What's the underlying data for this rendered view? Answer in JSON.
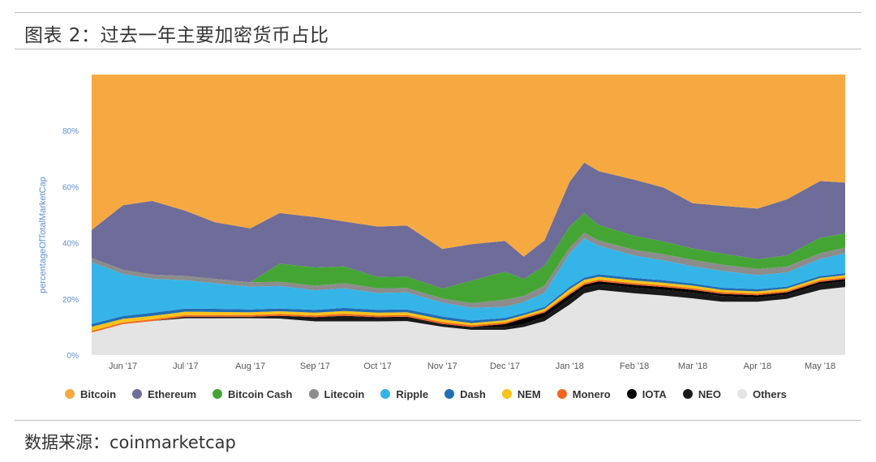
{
  "header": {
    "title": "图表 2：过去一年主要加密货币占比"
  },
  "footer": {
    "source": "数据来源：coinmarketcap"
  },
  "chart_data": {
    "type": "area",
    "stacking": "percent",
    "title": "",
    "xlabel": "",
    "ylabel": "percentageOfTotalMarketCap",
    "ylim": [
      0,
      100
    ],
    "y_ticks": [
      "0%",
      "20%",
      "40%",
      "60%",
      "80%"
    ],
    "y_tick_values": [
      0,
      20,
      40,
      60,
      80
    ],
    "x_ticks": [
      "Jun '17",
      "Jul '17",
      "Aug '17",
      "Sep '17",
      "Oct '17",
      "Nov '17",
      "Dec '17",
      "Jan '18",
      "Feb '18",
      "Mar '18",
      "Apr '18",
      "May '18"
    ],
    "x_tick_values": [
      "2017-06-01",
      "2017-07-01",
      "2017-08-01",
      "2017-09-01",
      "2017-10-01",
      "2017-11-01",
      "2017-12-01",
      "2018-01-01",
      "2018-02-01",
      "2018-03-01",
      "2018-04-01",
      "2018-05-01"
    ],
    "x_range": [
      "2017-05-17",
      "2018-05-13"
    ],
    "legend_position": "bottom",
    "grid": false,
    "x": [
      "2017-05-17",
      "2017-06-01",
      "2017-06-15",
      "2017-07-01",
      "2017-07-15",
      "2017-08-01",
      "2017-08-15",
      "2017-09-01",
      "2017-09-15",
      "2017-10-01",
      "2017-10-15",
      "2017-11-01",
      "2017-11-15",
      "2017-12-01",
      "2017-12-10",
      "2017-12-20",
      "2018-01-01",
      "2018-01-08",
      "2018-01-15",
      "2018-02-01",
      "2018-02-15",
      "2018-03-01",
      "2018-03-15",
      "2018-04-01",
      "2018-04-15",
      "2018-05-01",
      "2018-05-13"
    ],
    "series": [
      {
        "name": "Others",
        "color": "#e4e4e4",
        "values": [
          8,
          11,
          12,
          13,
          13,
          13,
          13,
          12,
          12,
          12,
          12,
          10,
          9,
          9,
          10,
          12,
          18,
          22,
          23,
          22,
          21,
          20,
          19,
          19,
          20,
          23,
          24
        ]
      },
      {
        "name": "NEO",
        "color": "#1a1a1a",
        "values": [
          0,
          0,
          0,
          0.5,
          0.5,
          0.5,
          1,
          1.5,
          2,
          1.5,
          1.5,
          1,
          1,
          1,
          1,
          1.5,
          2,
          2,
          2,
          2,
          2,
          2,
          2,
          1.5,
          1.5,
          2,
          2
        ]
      },
      {
        "name": "IOTA",
        "color": "#000000",
        "values": [
          0,
          0,
          0,
          0,
          0,
          0,
          0,
          0,
          0,
          0,
          0,
          0,
          0,
          1,
          2,
          1.5,
          1.5,
          1,
          1,
          1,
          1,
          1,
          0.8,
          0.8,
          0.8,
          0.8,
          0.8
        ]
      },
      {
        "name": "Monero",
        "color": "#f26722",
        "values": [
          0.6,
          0.6,
          0.6,
          0.6,
          0.6,
          0.6,
          0.6,
          0.6,
          0.7,
          0.6,
          0.6,
          0.7,
          0.6,
          0.6,
          0.5,
          0.5,
          0.7,
          0.6,
          0.6,
          0.6,
          0.6,
          0.6,
          0.6,
          0.6,
          0.6,
          0.6,
          0.6
        ]
      },
      {
        "name": "NEM",
        "color": "#f7c31a",
        "values": [
          1.5,
          1.3,
          1.2,
          1.2,
          1.1,
          1,
          1,
          1,
          1,
          1,
          1,
          0.9,
          0.8,
          0.8,
          0.7,
          0.8,
          1.3,
          1.2,
          1,
          1,
          0.9,
          0.9,
          0.8,
          0.8,
          0.8,
          0.8,
          0.8
        ]
      },
      {
        "name": "Dash",
        "color": "#1f6eb5",
        "values": [
          1,
          1,
          1.1,
          1.1,
          1.1,
          1,
          1,
          1,
          1.1,
          1,
          1,
          1,
          0.9,
          0.8,
          0.7,
          0.7,
          0.8,
          0.8,
          0.9,
          0.9,
          0.9,
          0.8,
          0.8,
          0.8,
          0.7,
          0.7,
          0.7
        ]
      },
      {
        "name": "Ripple",
        "color": "#35b4e8",
        "values": [
          22,
          15,
          12,
          10,
          9,
          8,
          8,
          7,
          7,
          6,
          6,
          5,
          4.5,
          4,
          4,
          5,
          12,
          14,
          10,
          8,
          7,
          6,
          6,
          5,
          5,
          6,
          7
        ]
      },
      {
        "name": "Litecoin",
        "color": "#8c8c8c",
        "values": [
          1.5,
          1.5,
          1.5,
          1.5,
          1.6,
          1.6,
          1.5,
          1.6,
          1.8,
          1.7,
          1.6,
          1.4,
          1.7,
          2.5,
          2.2,
          2.5,
          2,
          2,
          1.9,
          2,
          2.2,
          2.3,
          2.2,
          2.2,
          2.1,
          2,
          2
        ]
      },
      {
        "name": "Bitcoin Cash",
        "color": "#44a535",
        "values": [
          0,
          0,
          0,
          0,
          0,
          0,
          6.5,
          6.5,
          6,
          4,
          4,
          3.5,
          8,
          10,
          6,
          7,
          7.5,
          7,
          5.5,
          5,
          4.5,
          4,
          4,
          3.5,
          4,
          5.5,
          5
        ]
      },
      {
        "name": "Ethereum",
        "color": "#6e6c98",
        "values": [
          10,
          23,
          26,
          23,
          20,
          19,
          18,
          18,
          16,
          18,
          18,
          14,
          13,
          11,
          8,
          9,
          16,
          18,
          19,
          20,
          19,
          16,
          17,
          18,
          20,
          20,
          18
        ]
      },
      {
        "name": "Bitcoin",
        "color": "#f7a941",
        "values": [
          55.4,
          46.6,
          44.6,
          48.1,
          52.1,
          54.3,
          49.4,
          50.8,
          52.4,
          54.2,
          53.3,
          61.6,
          60.5,
          59.3,
          64.9,
          58.5,
          38.2,
          31.4,
          34.1,
          37.5,
          39.9,
          45.4,
          46.8,
          47.8,
          44.5,
          37.6,
          38.1
        ]
      }
    ],
    "legend": [
      "Bitcoin",
      "Ethereum",
      "Bitcoin Cash",
      "Litecoin",
      "Ripple",
      "Dash",
      "NEM",
      "Monero",
      "IOTA",
      "NEO",
      "Others"
    ]
  }
}
